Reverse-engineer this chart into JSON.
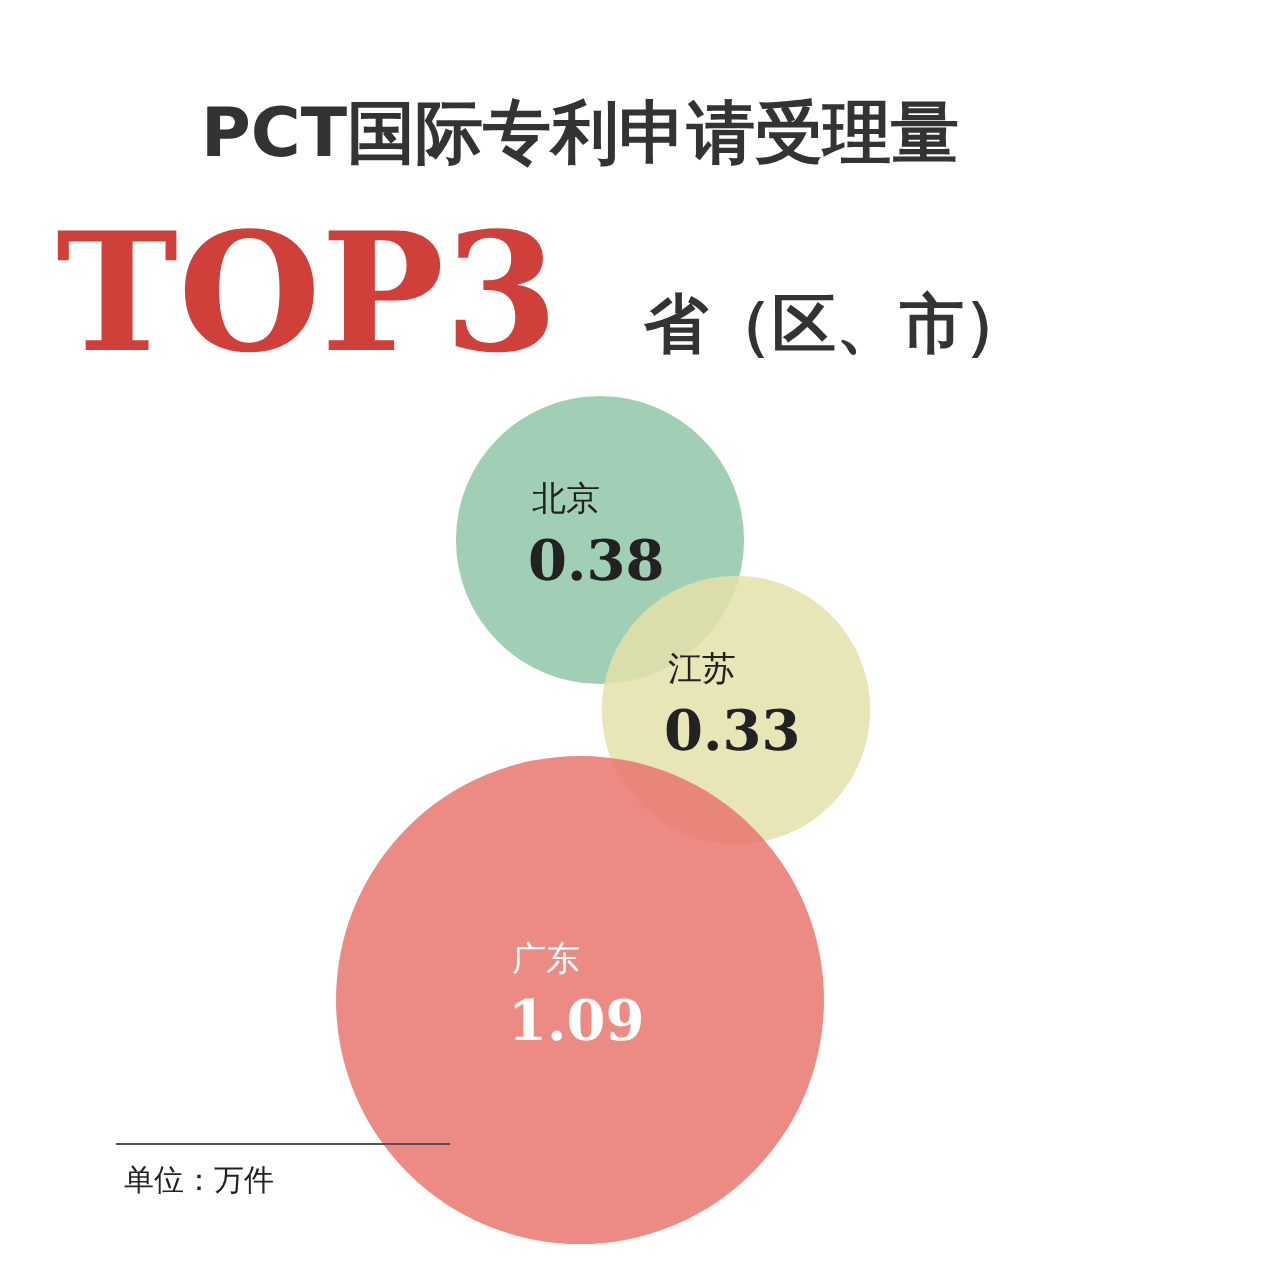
{
  "chart_data": {
    "type": "other",
    "title": "PCT国际专利申请受理量",
    "subtitle": "TOP3",
    "categories": [
      "北京",
      "江苏",
      "广东"
    ],
    "values": [
      0.38,
      0.33,
      1.09
    ],
    "colors": [
      "#8fc7a8",
      "#e4e1a9",
      "#e8776f"
    ],
    "data_labels": true,
    "annotations": [
      "省（区、市）",
      "单位：万件"
    ]
  }
}
